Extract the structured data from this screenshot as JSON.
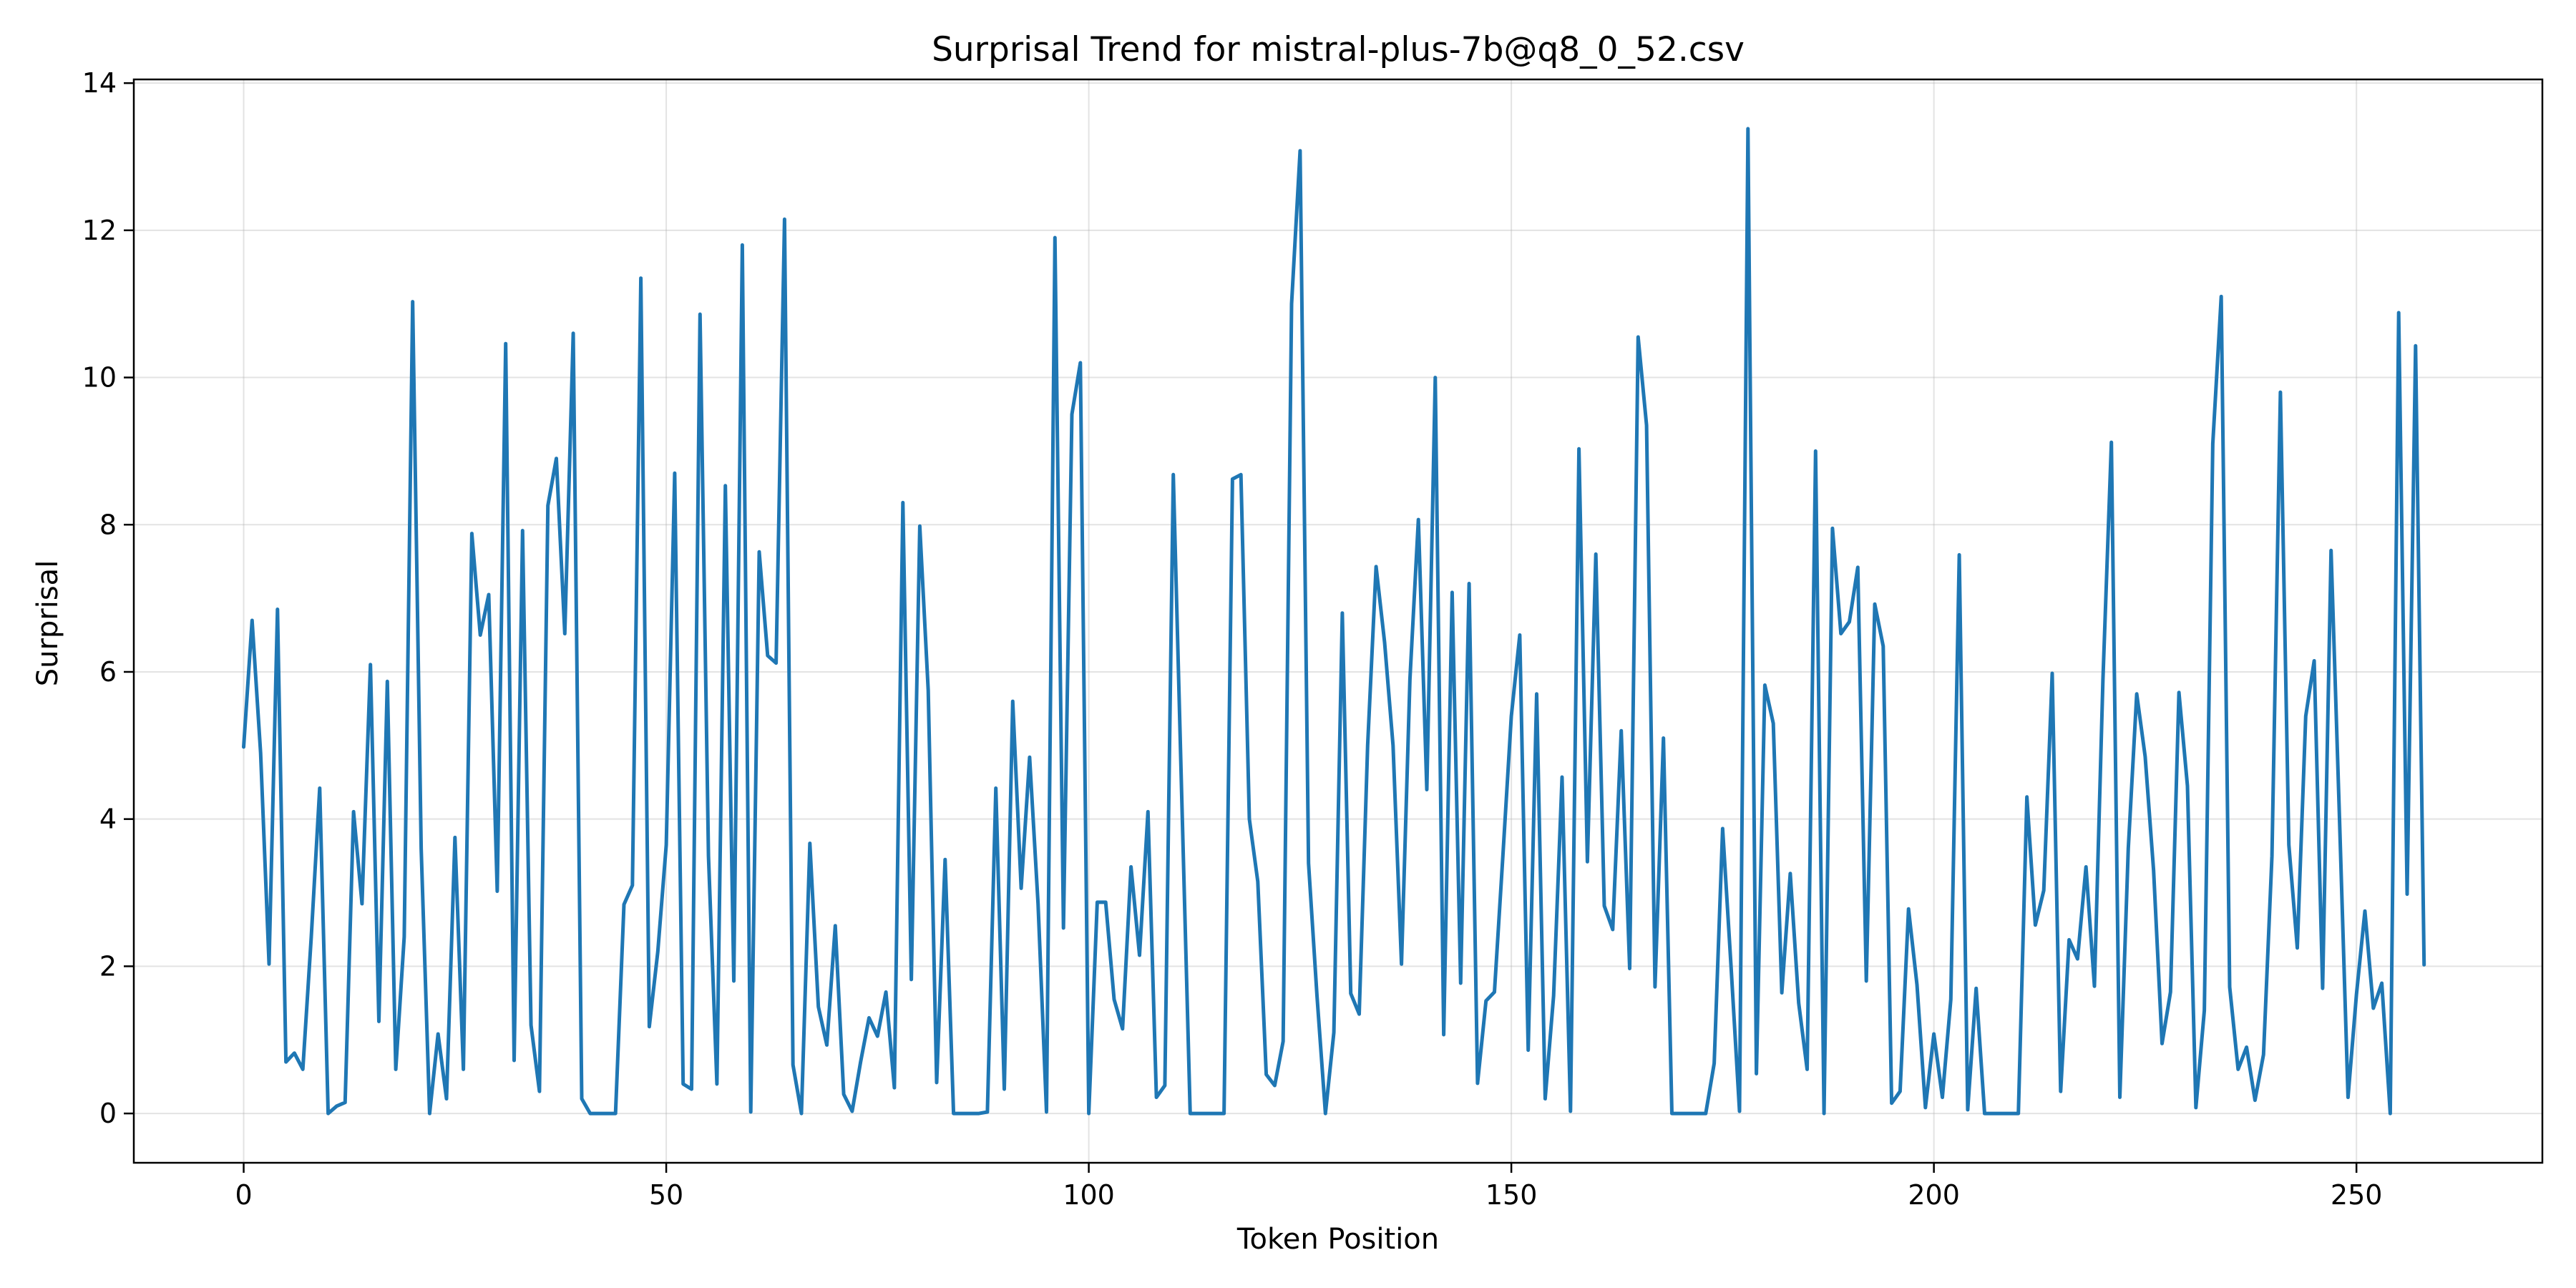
{
  "chart_data": {
    "type": "line",
    "title": "Surprisal Trend for mistral-plus-7b@q8_0_52.csv",
    "xlabel": "Token Position",
    "ylabel": "Surprisal",
    "xlim": [
      -13,
      272
    ],
    "ylim": [
      -0.67,
      14.05
    ],
    "x_ticks": [
      0,
      50,
      100,
      150,
      200,
      250
    ],
    "y_ticks": [
      0,
      2,
      4,
      6,
      8,
      10,
      12,
      14
    ],
    "grid": true,
    "series": [
      {
        "color": "#1f77b4",
        "y": [
          4.98,
          6.7,
          4.9,
          2.03,
          6.85,
          0.7,
          0.82,
          0.6,
          2.4,
          4.42,
          0.0,
          0.1,
          0.15,
          4.1,
          2.85,
          6.1,
          1.25,
          5.87,
          0.6,
          2.4,
          11.03,
          3.6,
          0.0,
          1.08,
          0.2,
          3.75,
          0.6,
          7.88,
          6.5,
          7.05,
          3.02,
          10.46,
          0.72,
          7.92,
          1.2,
          0.3,
          8.26,
          8.9,
          6.52,
          10.6,
          0.2,
          0.0,
          0.0,
          0.0,
          0.0,
          2.84,
          3.1,
          11.35,
          1.18,
          2.2,
          3.65,
          8.7,
          0.4,
          0.33,
          10.86,
          3.5,
          0.4,
          8.53,
          1.8,
          11.8,
          0.02,
          7.63,
          6.22,
          6.12,
          12.15,
          0.66,
          0.0,
          3.67,
          1.45,
          0.93,
          2.55,
          0.26,
          0.03,
          0.7,
          1.3,
          1.05,
          1.65,
          0.35,
          8.3,
          1.82,
          7.98,
          5.75,
          0.42,
          3.45,
          0.0,
          0.0,
          0.0,
          0.0,
          0.02,
          4.42,
          0.33,
          5.6,
          3.06,
          4.84,
          2.85,
          0.02,
          11.9,
          2.52,
          9.5,
          10.2,
          0.0,
          2.87,
          2.87,
          1.55,
          1.15,
          3.35,
          2.15,
          4.1,
          0.22,
          0.38,
          8.68,
          4.3,
          0.0,
          0.0,
          0.0,
          0.0,
          0.0,
          8.62,
          8.68,
          4.0,
          3.15,
          0.53,
          0.38,
          0.98,
          11.0,
          13.08,
          3.4,
          1.6,
          0.0,
          1.1,
          6.8,
          1.63,
          1.35,
          5.0,
          7.43,
          6.4,
          5.0,
          2.03,
          5.9,
          8.07,
          4.4,
          10.0,
          1.07,
          7.08,
          1.77,
          7.2,
          0.41,
          1.53,
          1.65,
          3.5,
          5.4,
          6.5,
          0.86,
          5.7,
          0.2,
          1.6,
          4.57,
          0.03,
          9.03,
          3.42,
          7.6,
          2.82,
          2.5,
          5.2,
          1.97,
          10.55,
          9.35,
          1.72,
          5.1,
          0.0,
          0.0,
          0.0,
          0.0,
          0.0,
          0.68,
          3.87,
          1.99,
          0.03,
          13.38,
          0.54,
          5.82,
          5.3,
          1.64,
          3.26,
          1.5,
          0.6,
          9.0,
          0.0,
          7.95,
          6.52,
          6.68,
          7.42,
          1.8,
          6.92,
          6.35,
          0.14,
          0.3,
          2.78,
          1.75,
          0.08,
          1.08,
          0.22,
          1.55,
          7.59,
          0.05,
          1.7,
          0.0,
          0.0,
          0.0,
          0.0,
          0.0,
          4.3,
          2.56,
          3.03,
          5.98,
          0.3,
          2.36,
          2.1,
          3.35,
          1.73,
          5.9,
          9.12,
          0.22,
          3.6,
          5.7,
          4.85,
          3.3,
          0.95,
          1.65,
          5.72,
          4.45,
          0.08,
          1.4,
          9.1,
          11.1,
          1.72,
          0.6,
          0.9,
          0.18,
          0.8,
          3.5,
          9.8,
          3.65,
          2.25,
          5.4,
          6.15,
          1.7,
          7.65,
          4.0,
          0.22,
          1.62,
          2.75,
          1.43,
          1.77,
          0.0,
          10.88,
          2.98,
          10.43,
          2.02
        ]
      }
    ]
  }
}
